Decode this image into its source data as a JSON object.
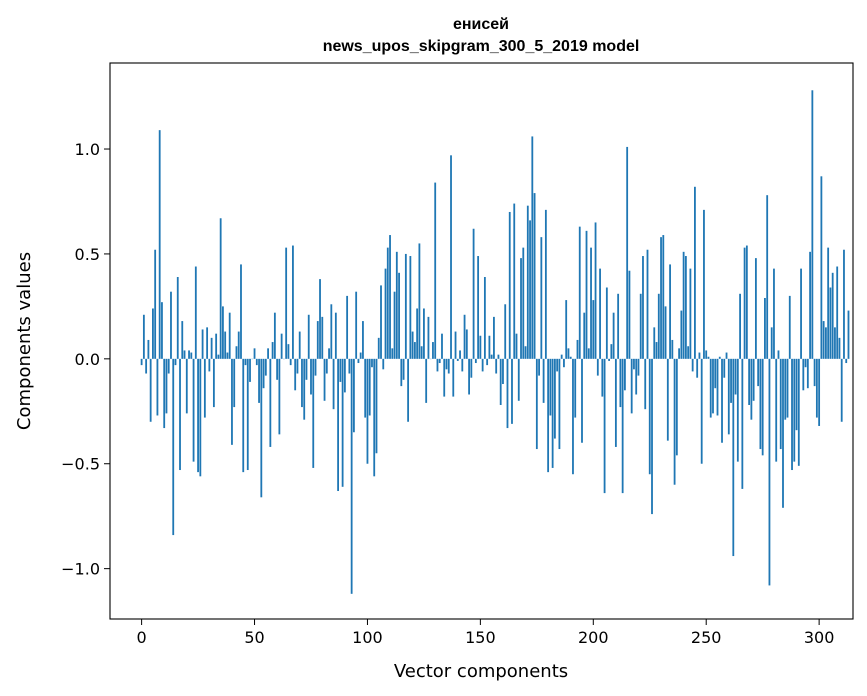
{
  "chart_data": {
    "type": "bar",
    "title_line1": "енисей",
    "title_line2": "news_upos_skipgram_300_5_2019 model",
    "xlabel": "Vector components",
    "ylabel": "Components values",
    "xlim": [
      -14,
      315
    ],
    "ylim": [
      -1.24,
      1.41
    ],
    "xticks": [
      0,
      50,
      100,
      150,
      200,
      250,
      300
    ],
    "yticks": [
      -1.0,
      -0.5,
      0.0,
      0.5,
      1.0
    ],
    "ytick_labels": [
      "−1.0",
      "−0.5",
      "0.0",
      "0.5",
      "1.0"
    ],
    "bar_color": "#1f77b4",
    "values": [
      -0.03,
      0.21,
      -0.07,
      0.09,
      -0.3,
      0.24,
      0.52,
      -0.27,
      1.09,
      0.27,
      -0.33,
      -0.26,
      -0.07,
      0.32,
      -0.84,
      -0.03,
      0.39,
      -0.53,
      0.18,
      0.04,
      -0.26,
      0.04,
      0.03,
      -0.49,
      0.44,
      -0.54,
      -0.56,
      0.14,
      -0.28,
      0.15,
      -0.06,
      0.1,
      -0.23,
      0.12,
      0.02,
      0.67,
      0.25,
      0.13,
      0.03,
      0.22,
      -0.41,
      -0.23,
      0.06,
      0.13,
      0.45,
      -0.54,
      -0.03,
      -0.53,
      -0.11,
      0.0,
      0.05,
      -0.03,
      -0.21,
      -0.66,
      -0.14,
      -0.08,
      0.05,
      -0.42,
      0.08,
      0.22,
      -0.1,
      -0.36,
      0.12,
      0.0,
      0.53,
      0.07,
      -0.03,
      0.54,
      -0.15,
      -0.07,
      0.13,
      -0.23,
      -0.29,
      -0.1,
      0.21,
      -0.17,
      -0.52,
      -0.08,
      0.18,
      0.38,
      0.2,
      -0.2,
      -0.07,
      0.05,
      0.26,
      -0.24,
      0.22,
      -0.63,
      -0.11,
      -0.61,
      -0.16,
      0.3,
      -0.07,
      -1.12,
      -0.35,
      0.32,
      -0.02,
      0.03,
      0.18,
      -0.28,
      -0.5,
      -0.27,
      -0.04,
      -0.56,
      -0.45,
      0.1,
      0.35,
      -0.05,
      0.43,
      0.53,
      0.59,
      0.05,
      0.32,
      0.51,
      0.41,
      -0.13,
      -0.1,
      0.5,
      -0.3,
      0.49,
      0.13,
      0.08,
      0.24,
      0.55,
      0.06,
      0.24,
      -0.21,
      0.2,
      0.0,
      0.08,
      0.84,
      -0.06,
      -0.02,
      0.12,
      -0.18,
      -0.05,
      -0.07,
      0.97,
      -0.18,
      0.13,
      -0.01,
      0.04,
      -0.06,
      0.21,
      0.14,
      -0.17,
      -0.09,
      0.62,
      -0.02,
      0.49,
      0.11,
      -0.06,
      0.39,
      -0.03,
      0.11,
      0.02,
      0.2,
      -0.07,
      0.02,
      -0.22,
      -0.12,
      0.26,
      -0.33,
      0.7,
      -0.31,
      0.74,
      0.12,
      -0.2,
      0.48,
      0.53,
      0.06,
      0.73,
      0.66,
      1.06,
      0.79,
      -0.43,
      -0.08,
      0.58,
      -0.21,
      0.71,
      -0.54,
      -0.27,
      -0.52,
      -0.38,
      -0.06,
      -0.43,
      0.02,
      -0.04,
      0.28,
      0.05,
      0.01,
      -0.55,
      -0.28,
      0.09,
      0.63,
      -0.4,
      0.22,
      0.61,
      0.05,
      0.53,
      0.28,
      0.65,
      -0.08,
      0.43,
      -0.18,
      -0.64,
      0.34,
      -0.01,
      0.07,
      0.22,
      -0.42,
      0.31,
      -0.23,
      -0.64,
      -0.15,
      1.01,
      0.42,
      -0.26,
      -0.05,
      -0.17,
      -0.08,
      0.31,
      0.49,
      -0.24,
      0.52,
      -0.55,
      -0.74,
      0.15,
      0.08,
      0.31,
      0.58,
      0.59,
      0.25,
      -0.39,
      0.45,
      0.09,
      -0.6,
      -0.46,
      0.05,
      0.23,
      0.51,
      0.49,
      0.06,
      0.43,
      -0.06,
      0.82,
      -0.09,
      0.03,
      -0.5,
      0.71,
      0.04,
      0.01,
      -0.28,
      -0.26,
      -0.14,
      -0.27,
      0.01,
      -0.4,
      -0.09,
      0.03,
      -0.36,
      -0.21,
      -0.94,
      -0.17,
      -0.49,
      0.31,
      -0.62,
      0.53,
      0.54,
      -0.22,
      -0.29,
      -0.2,
      0.48,
      -0.13,
      -0.43,
      -0.46,
      0.29,
      0.78,
      -1.08,
      0.15,
      0.43,
      -0.49,
      0.04,
      -0.43,
      -0.71,
      -0.29,
      -0.28,
      0.3,
      -0.53,
      -0.49,
      -0.34,
      -0.51,
      0.43,
      -0.15,
      -0.04,
      -0.14,
      0.51,
      1.28,
      -0.13,
      -0.28,
      -0.32,
      0.87,
      0.18,
      0.15,
      0.53,
      0.34,
      0.41,
      0.15,
      0.44,
      0.1,
      -0.3,
      0.52,
      -0.02,
      0.23
    ]
  }
}
